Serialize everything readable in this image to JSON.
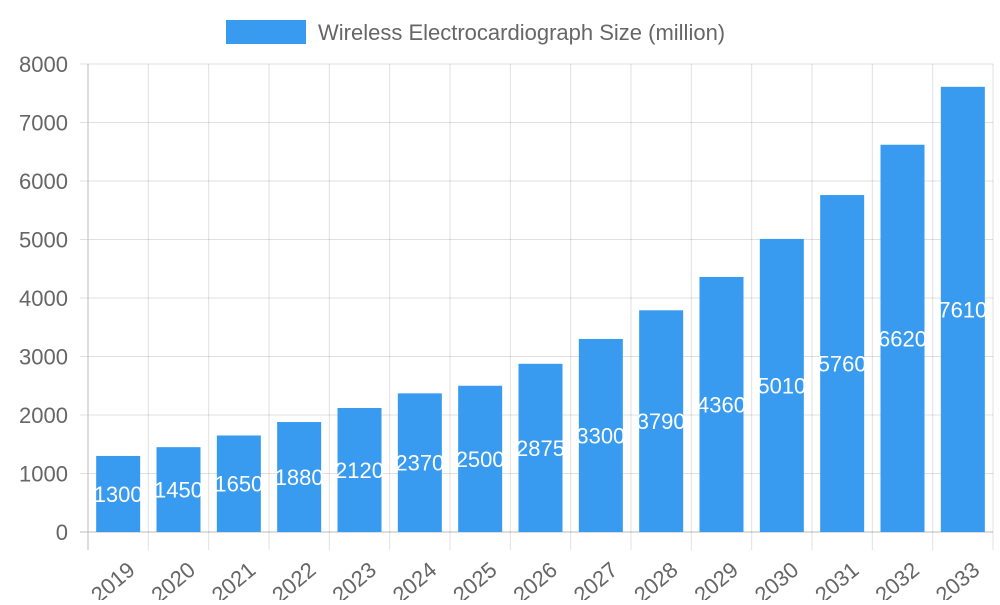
{
  "chart_data": {
    "type": "bar",
    "title": "",
    "xlabel": "",
    "ylabel": "",
    "categories": [
      "2019",
      "2020",
      "2021",
      "2022",
      "2023",
      "2024",
      "2025",
      "2026",
      "2027",
      "2028",
      "2029",
      "2030",
      "2031",
      "2032",
      "2033"
    ],
    "series": [
      {
        "name": "Wireless Electrocardiograph Size (million)",
        "values": [
          1300,
          1450,
          1650,
          1880,
          2120,
          2370,
          2500,
          2875,
          3300,
          3790,
          4360,
          5010,
          5760,
          6620,
          7610
        ],
        "color": "#389bf0"
      }
    ],
    "ylim": [
      0,
      8000
    ],
    "yticks": [
      0,
      1000,
      2000,
      3000,
      4000,
      5000,
      6000,
      7000,
      8000
    ],
    "grid": true,
    "legend_position": "top",
    "data_labels": true,
    "data_label_color": "#ffffff"
  }
}
